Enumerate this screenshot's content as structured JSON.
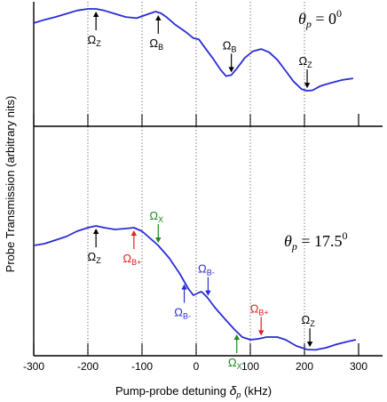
{
  "chart_data": {
    "type": "line",
    "xlabel_main": "Pump-probe detuning ",
    "xlabel_sym": "δ",
    "xlabel_sub": "p",
    "xlabel_unit": " (kHz)",
    "ylabel": "Probe Transmission (arbitrary nits)",
    "xlim": [
      -300,
      300
    ],
    "xticks": [
      -300,
      -200,
      -100,
      0,
      100,
      200,
      300
    ],
    "xtick_labels": [
      "-300",
      "-200",
      "-100",
      "0",
      "100",
      "200",
      "300"
    ],
    "panels": [
      {
        "id": "top",
        "theta_label": "= 0",
        "theta_sup": "0",
        "color": "#2b2bd6",
        "series": {
          "x": [
            -300,
            -280,
            -260,
            -240,
            -220,
            -200,
            -185,
            -170,
            -150,
            -130,
            -110,
            -90,
            -75,
            -65,
            -55,
            -40,
            -20,
            -5,
            5,
            15,
            30,
            45,
            55,
            65,
            75,
            90,
            105,
            120,
            135,
            150,
            165,
            180,
            195,
            205,
            215,
            230,
            250,
            270,
            290
          ],
          "y": [
            0.87,
            0.9,
            0.925,
            0.955,
            0.985,
            1.0,
            1.0,
            0.985,
            0.955,
            0.925,
            0.915,
            0.95,
            0.975,
            0.96,
            0.925,
            0.86,
            0.79,
            0.73,
            0.72,
            0.65,
            0.55,
            0.44,
            0.38,
            0.39,
            0.45,
            0.55,
            0.61,
            0.63,
            0.6,
            0.53,
            0.43,
            0.33,
            0.26,
            0.245,
            0.25,
            0.29,
            0.32,
            0.345,
            0.36
          ]
        },
        "annotations": [
          {
            "x": -185,
            "label": "Ω",
            "sub": "Z",
            "color": "#000000",
            "dir": "up"
          },
          {
            "x": -70,
            "label": "Ω",
            "sub": "B",
            "color": "#000000",
            "dir": "up"
          },
          {
            "x": 65,
            "label": "Ω",
            "sub": "B",
            "color": "#000000",
            "dir": "down"
          },
          {
            "x": 205,
            "label": "Ω",
            "sub": "Z",
            "color": "#000000",
            "dir": "down"
          }
        ]
      },
      {
        "id": "bottom",
        "theta_label": "= 17.5",
        "theta_sup": "0",
        "color": "#2b2bd6",
        "series": {
          "x": [
            -300,
            -280,
            -260,
            -240,
            -220,
            -200,
            -185,
            -170,
            -150,
            -130,
            -115,
            -100,
            -85,
            -70,
            -50,
            -30,
            -15,
            -5,
            5,
            10,
            20,
            35,
            55,
            70,
            85,
            100,
            115,
            130,
            150,
            165,
            185,
            205,
            220,
            240,
            260,
            280,
            295
          ],
          "y": [
            0.62,
            0.63,
            0.65,
            0.67,
            0.7,
            0.72,
            0.73,
            0.72,
            0.71,
            0.715,
            0.72,
            0.7,
            0.66,
            0.62,
            0.55,
            0.46,
            0.38,
            0.34,
            0.355,
            0.36,
            0.33,
            0.27,
            0.2,
            0.15,
            0.105,
            0.09,
            0.095,
            0.105,
            0.105,
            0.09,
            0.055,
            0.035,
            0.033,
            0.045,
            0.065,
            0.08,
            0.09
          ]
        },
        "annotations": [
          {
            "x": -185,
            "label": "Ω",
            "sub": "Z",
            "color": "#000000",
            "dir": "up"
          },
          {
            "x": -115,
            "label": "Ω",
            "sub": "B+",
            "color": "#e02020",
            "dir": "up"
          },
          {
            "x": -70,
            "label": "Ω",
            "sub": "X",
            "color": "#1a8a1a",
            "dir": "down"
          },
          {
            "x": -22,
            "label": "Ω",
            "sub": "B-",
            "color": "#2b2bd6",
            "dir": "up"
          },
          {
            "x": 22,
            "label": "Ω",
            "sub": "B-",
            "color": "#2b2bd6",
            "dir": "down"
          },
          {
            "x": 75,
            "label": "Ω",
            "sub": "X",
            "color": "#1a8a1a",
            "dir": "up"
          },
          {
            "x": 120,
            "label": "Ω",
            "sub": "B+",
            "color": "#e02020",
            "dir": "down"
          },
          {
            "x": 210,
            "label": "Ω",
            "sub": "Z",
            "color": "#000000",
            "dir": "down"
          }
        ]
      }
    ],
    "grid": "dotted vertical lines at -200, -100, 0, 100, 200"
  }
}
